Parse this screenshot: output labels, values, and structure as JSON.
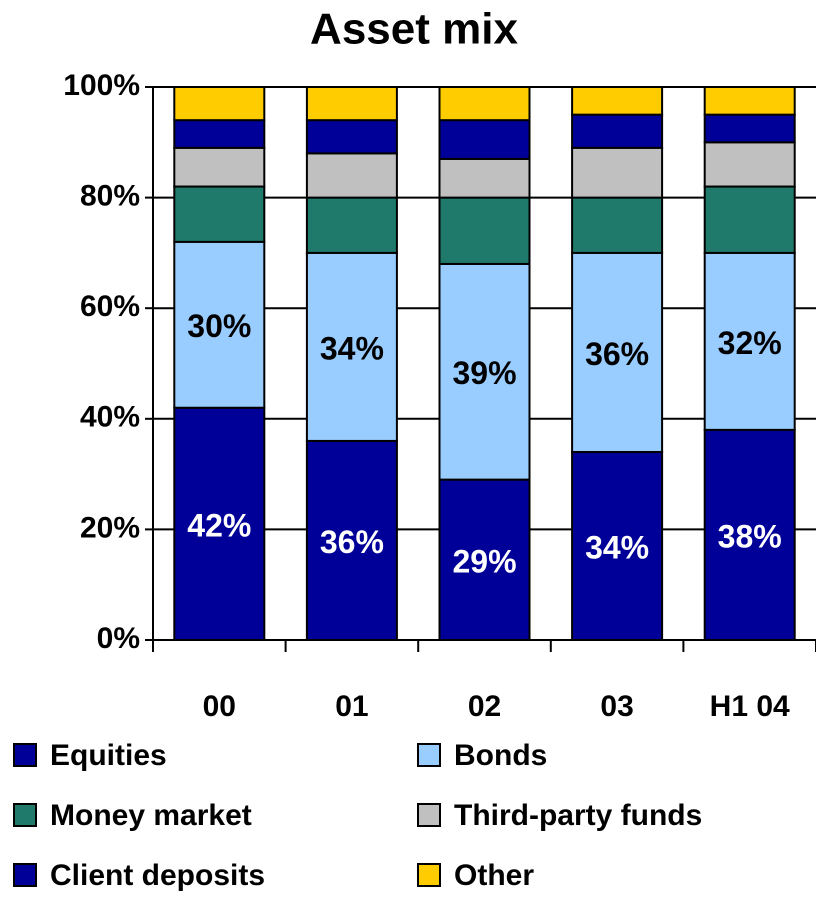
{
  "chart_data": {
    "type": "stacked_bar",
    "title": "Asset mix",
    "categories": [
      "00",
      "01",
      "02",
      "03",
      "H1 04"
    ],
    "series": [
      {
        "name": "Equities",
        "color": "#000099",
        "values": [
          42,
          36,
          29,
          34,
          38
        ],
        "value_labels": [
          "42%",
          "36%",
          "29%",
          "34%",
          "38%"
        ],
        "label_color": "#ffffff"
      },
      {
        "name": "Bonds",
        "color": "#99ccff",
        "values": [
          30,
          34,
          39,
          36,
          32
        ],
        "value_labels": [
          "30%",
          "34%",
          "39%",
          "36%",
          "32%"
        ],
        "label_color": "#000000"
      },
      {
        "name": "Money market",
        "color": "#1f7a6b",
        "values": [
          10,
          10,
          12,
          10,
          12
        ]
      },
      {
        "name": "Third-party funds",
        "color": "#c0c0c0",
        "values": [
          7,
          8,
          7,
          9,
          8
        ]
      },
      {
        "name": "Client deposits",
        "color": "#000099",
        "values": [
          5,
          6,
          7,
          6,
          5
        ]
      },
      {
        "name": "Other",
        "color": "#ffcc00",
        "values": [
          6,
          6,
          6,
          5,
          5
        ]
      }
    ],
    "ylim": [
      0,
      100
    ],
    "yticks": [
      {
        "value": 0,
        "label": "0%"
      },
      {
        "value": 20,
        "label": "20%"
      },
      {
        "value": 40,
        "label": "40%"
      },
      {
        "value": 60,
        "label": "60%"
      },
      {
        "value": 80,
        "label": "80%"
      },
      {
        "value": 100,
        "label": "100%"
      }
    ],
    "grid": true,
    "legend": "bottom"
  }
}
